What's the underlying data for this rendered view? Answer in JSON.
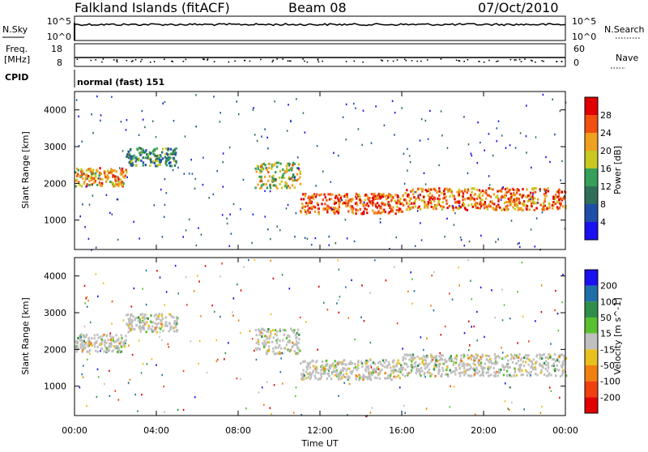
{
  "header": {
    "station": "Falkland Islands (fitACF)",
    "beam": "Beam 08",
    "date": "07/Oct/2010"
  },
  "strips": {
    "nsky_label": "N.Sky",
    "nsky_ticks": [
      "10^5",
      "10^0"
    ],
    "nsearch_label": "N.Search",
    "nsearch_ticks": [
      "10^5",
      "10^0"
    ],
    "freq_label": "Freq.",
    "freq_unit": "[MHz]",
    "freq_ticks": [
      "18",
      "8"
    ],
    "nave_label": "Nave",
    "nave_ticks": [
      "60",
      "0"
    ],
    "cpid_label": "CPID",
    "cpid_text": "normal (fast) 151"
  },
  "chart_data": [
    {
      "type": "heatmap",
      "ylabel": "Slant Range [km]",
      "xlabel": "Time UT",
      "x_ticks": [
        "00:00",
        "04:00",
        "08:00",
        "12:00",
        "16:00",
        "20:00",
        "00:00"
      ],
      "xlim_hours": [
        0,
        24
      ],
      "y_ticks": [
        1000,
        2000,
        3000,
        4000
      ],
      "ylim": [
        200,
        4500
      ],
      "colorbar": {
        "label": "Power [dB]",
        "ticks": [
          4,
          8,
          12,
          16,
          20,
          24,
          28
        ],
        "colors": [
          "#1a10f0",
          "#1e4fa8",
          "#2f6f5a",
          "#35a05a",
          "#c8c820",
          "#f0a020",
          "#f05010",
          "#e00000"
        ]
      },
      "echo_bands": [
        {
          "t": [
            0,
            2.5
          ],
          "range_km": [
            1950,
            2450
          ],
          "power_db": 24
        },
        {
          "t": [
            2.5,
            5
          ],
          "range_km": [
            2500,
            3000
          ],
          "power_db": 14
        },
        {
          "t": [
            8.8,
            11
          ],
          "range_km": [
            1900,
            2600
          ],
          "power_db": 20
        },
        {
          "t": [
            11,
            16
          ],
          "range_km": [
            1200,
            1750
          ],
          "power_db": 28
        },
        {
          "t": [
            16,
            24
          ],
          "range_km": [
            1300,
            1900
          ],
          "power_db": 26
        }
      ]
    },
    {
      "type": "heatmap",
      "ylabel": "Slant Range [km]",
      "xlabel": "Time UT",
      "x_ticks": [
        "00:00",
        "04:00",
        "08:00",
        "12:00",
        "16:00",
        "20:00",
        "00:00"
      ],
      "xlim_hours": [
        0,
        24
      ],
      "y_ticks": [
        1000,
        2000,
        3000,
        4000
      ],
      "ylim": [
        200,
        4500
      ],
      "colorbar": {
        "label": "Velocity [m s^-1]",
        "ticks": [
          200,
          100,
          50,
          15,
          -15,
          -50,
          -100,
          -200
        ],
        "colors": [
          "#1a10f0",
          "#1e6fa8",
          "#2f8f4a",
          "#5ac030",
          "#c0c0c0",
          "#e8c020",
          "#f08010",
          "#f04010",
          "#e00000"
        ]
      },
      "echo_bands": [
        {
          "t": [
            0,
            2.5
          ],
          "range_km": [
            1950,
            2450
          ],
          "velocity": 0
        },
        {
          "t": [
            2.5,
            5
          ],
          "range_km": [
            2500,
            3000
          ],
          "velocity": 0
        },
        {
          "t": [
            8.8,
            11
          ],
          "range_km": [
            1900,
            2600
          ],
          "velocity": 10
        },
        {
          "t": [
            11,
            16
          ],
          "range_km": [
            1200,
            1750
          ],
          "velocity": 0
        },
        {
          "t": [
            16,
            24
          ],
          "range_km": [
            1300,
            1900
          ],
          "velocity": -10
        }
      ]
    }
  ]
}
